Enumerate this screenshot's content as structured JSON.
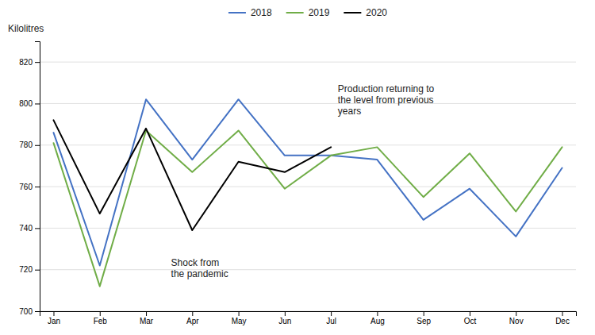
{
  "chart_data": {
    "type": "line",
    "y_label": "Kilolitres",
    "categories": [
      "Jan",
      "Feb",
      "Mar",
      "Apr",
      "May",
      "Jun",
      "Jul",
      "Aug",
      "Sep",
      "Oct",
      "Nov",
      "Dec"
    ],
    "series": [
      {
        "name": "2018",
        "color": "#4472C4",
        "values": [
          786,
          722,
          802,
          773,
          802,
          775,
          775,
          773,
          744,
          759,
          736,
          769
        ]
      },
      {
        "name": "2019",
        "color": "#70AD47",
        "values": [
          781,
          712,
          787,
          767,
          787,
          759,
          775,
          779,
          755,
          776,
          748,
          779
        ]
      },
      {
        "name": "2020",
        "color": "#000000",
        "values": [
          792,
          747,
          788,
          739,
          772,
          767,
          779,
          null,
          null,
          null,
          null,
          null
        ]
      }
    ],
    "ylim": [
      700,
      830
    ],
    "yticks": [
      700,
      720,
      740,
      760,
      780,
      800,
      820
    ],
    "grid": true,
    "legend": "top",
    "annotations": [
      "Shock from\nthe pandemic",
      "Production returning to\nthe level from previous\nyears"
    ]
  }
}
